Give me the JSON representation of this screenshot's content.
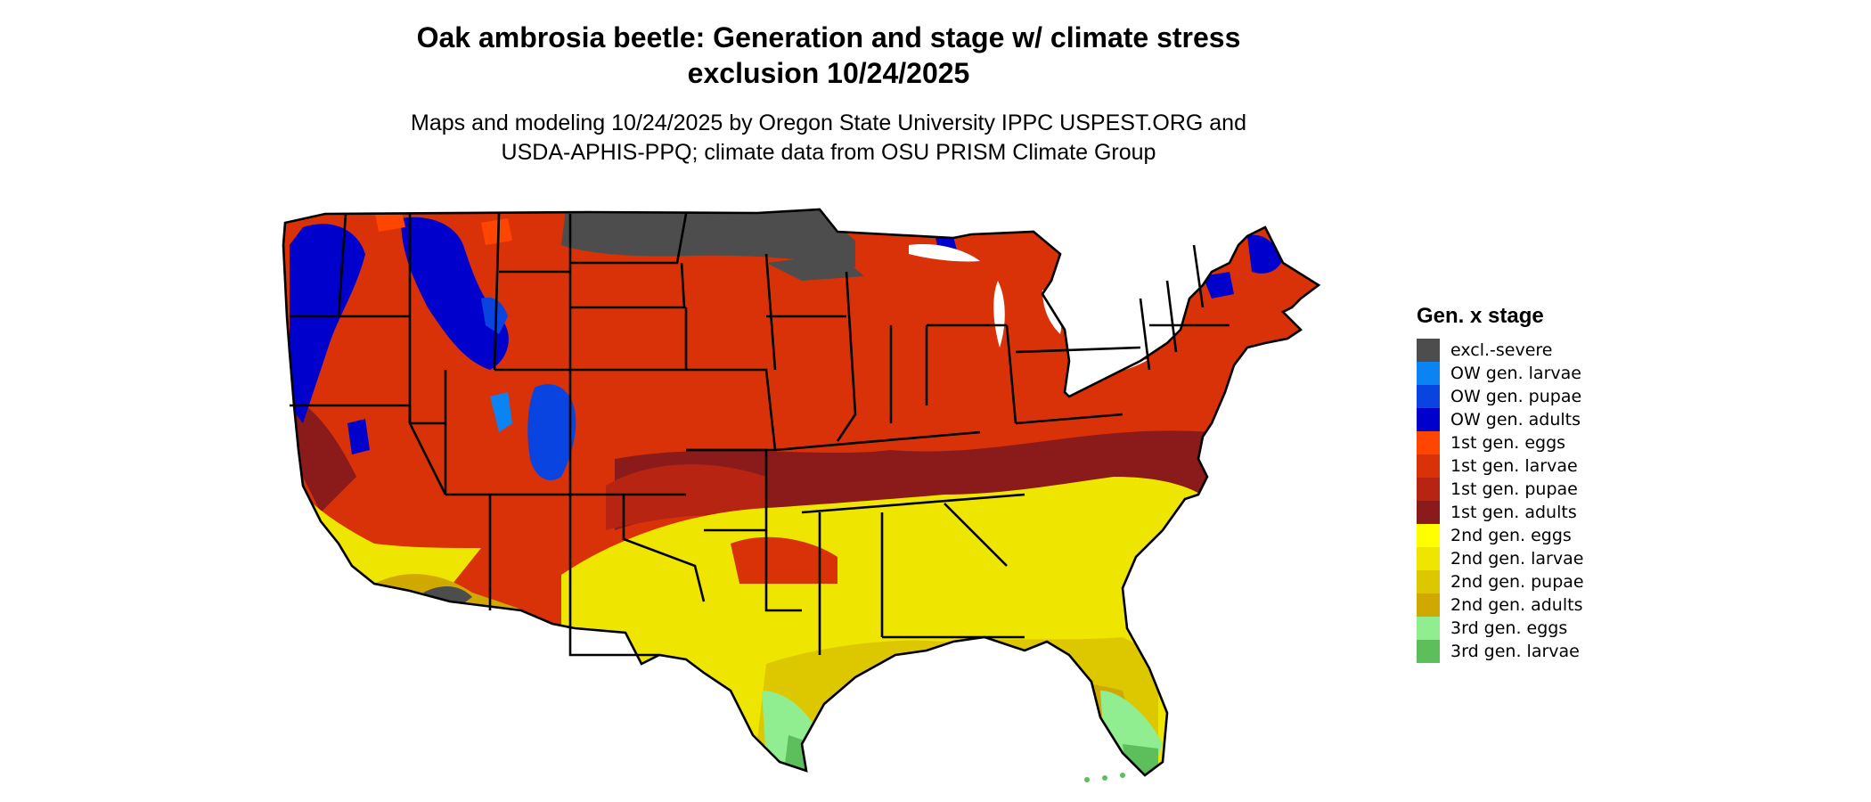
{
  "header": {
    "title_lines": [
      "Oak ambrosia beetle: Generation and stage w/ climate stress",
      "exclusion 10/24/2025"
    ],
    "subtitle_lines": [
      "Maps and modeling 10/24/2025 by Oregon State University IPPC USPEST.ORG and",
      "USDA-APHIS-PPQ; climate data from OSU PRISM Climate Group"
    ]
  },
  "map": {
    "region": "Contiguous United States",
    "variable": "Gen. x stage",
    "regions_dominant_class": [
      {
        "area": "Northern Great Plains (North Dakota, Minnesota, eastern Montana)",
        "class": "excl.-severe"
      },
      {
        "area": "Northern Rocky Mountains and Cascades",
        "class": "OW gen. adults"
      },
      {
        "area": "Interior West, Great Plains, Midwest, Great Lakes, Northeast",
        "class": "1st gen. larvae"
      },
      {
        "area": "Central Plains to Mid-Atlantic band",
        "class": "1st gen. adults"
      },
      {
        "area": "Southern Plains and Southeast",
        "class": "2nd gen. larvae"
      },
      {
        "area": "Gulf Coast",
        "class": "2nd gen. adults"
      },
      {
        "area": "South Texas and Florida peninsula",
        "class": "3rd gen. eggs"
      },
      {
        "area": "Southern tip of Florida and Texas",
        "class": "3rd gen. larvae"
      }
    ]
  },
  "legend": {
    "title": "Gen. x stage",
    "items": [
      {
        "label": "excl.-severe",
        "color": "#4d4d4d"
      },
      {
        "label": "OW gen. larvae",
        "color": "#0a84f2"
      },
      {
        "label": "OW gen. pupae",
        "color": "#0a44e0"
      },
      {
        "label": "OW gen. adults",
        "color": "#0000cc"
      },
      {
        "label": "1st gen. eggs",
        "color": "#ff4500"
      },
      {
        "label": "1st gen. larvae",
        "color": "#d93208"
      },
      {
        "label": "1st gen. pupae",
        "color": "#b82412"
      },
      {
        "label": "1st gen. adults",
        "color": "#8b1a1a"
      },
      {
        "label": "2nd gen. eggs",
        "color": "#ffff00"
      },
      {
        "label": "2nd gen. larvae",
        "color": "#eee500"
      },
      {
        "label": "2nd gen. pupae",
        "color": "#ddc800"
      },
      {
        "label": "2nd gen. adults",
        "color": "#cfa800"
      },
      {
        "label": "3rd gen. eggs",
        "color": "#90ee90"
      },
      {
        "label": "3rd gen. larvae",
        "color": "#5cbf5c"
      }
    ]
  }
}
